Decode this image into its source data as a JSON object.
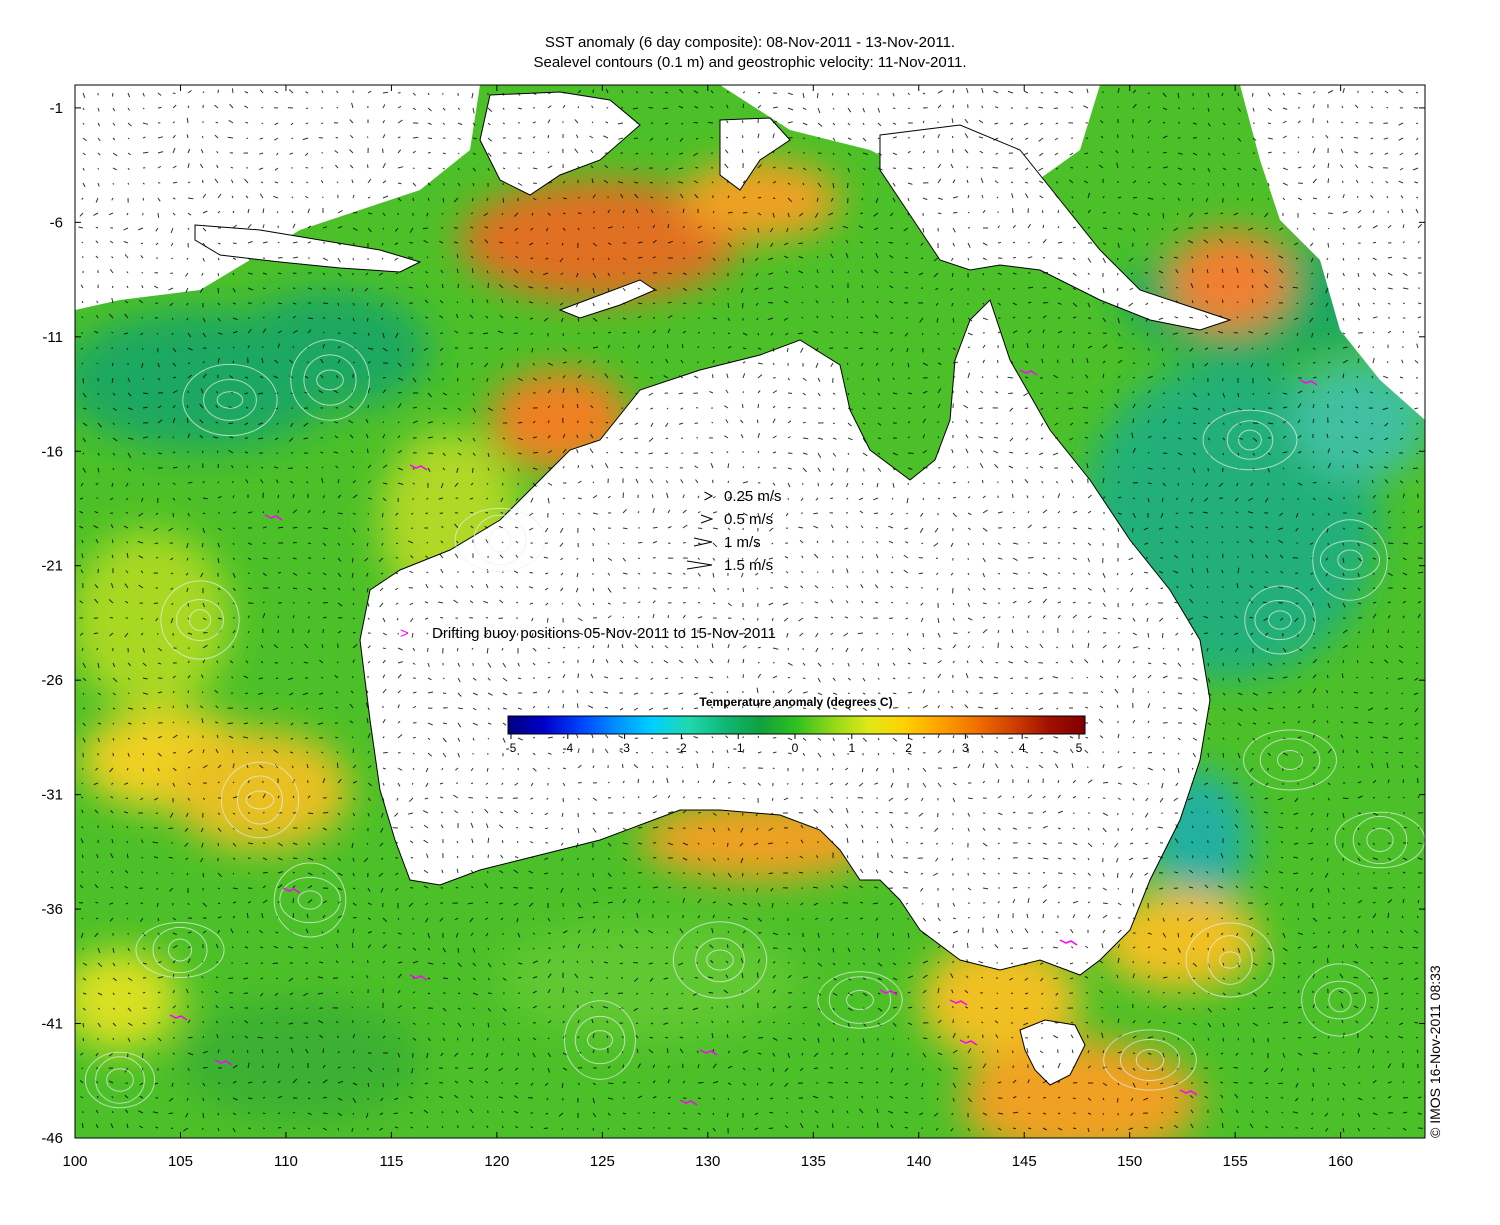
{
  "title": {
    "line1": "SST anomaly (6 day composite): 08-Nov-2011 - 13-Nov-2011.",
    "line2": "Sealevel contours (0.1 m) and geostrophic velocity: 11-Nov-2011."
  },
  "map": {
    "x_ticks": [
      "100",
      "105",
      "110",
      "115",
      "120",
      "125",
      "130",
      "135",
      "140",
      "145",
      "150",
      "155",
      "160"
    ],
    "y_ticks": [
      "-1",
      "-6",
      "-11",
      "-16",
      "-21",
      "-26",
      "-31",
      "-36",
      "-41",
      "-46"
    ],
    "lon_range": [
      100,
      164
    ],
    "lat_range": [
      -46,
      0
    ]
  },
  "velocity_legend": [
    {
      "label": "0.25 m/s",
      "speed": 0.25
    },
    {
      "label": "0.5 m/s",
      "speed": 0.5
    },
    {
      "label": "1 m/s",
      "speed": 1
    },
    {
      "label": "1.5 m/s",
      "speed": 1.5
    }
  ],
  "buoy_legend": {
    "symbol": ">",
    "label": "Drifting buoy positions 05-Nov-2011 to 15-Nov-2011",
    "color": "#ff00ff"
  },
  "colorbar": {
    "title": "Temperature anomaly (degrees C)",
    "ticks": [
      "-5",
      "-4",
      "-3",
      "-2",
      "-1",
      "0",
      "1",
      "2",
      "3",
      "4",
      "5"
    ],
    "range": [
      -5,
      5
    ],
    "colors": [
      "#000080",
      "#0000c8",
      "#0040ff",
      "#0090ff",
      "#00d0ff",
      "#20d8b0",
      "#10b878",
      "#10a040",
      "#30c020",
      "#90d818",
      "#e0e818",
      "#ffd000",
      "#ffa000",
      "#f07000",
      "#d04000",
      "#a01000",
      "#800000"
    ]
  },
  "copyright": "© IMOS 16-Nov-2011 08:33"
}
